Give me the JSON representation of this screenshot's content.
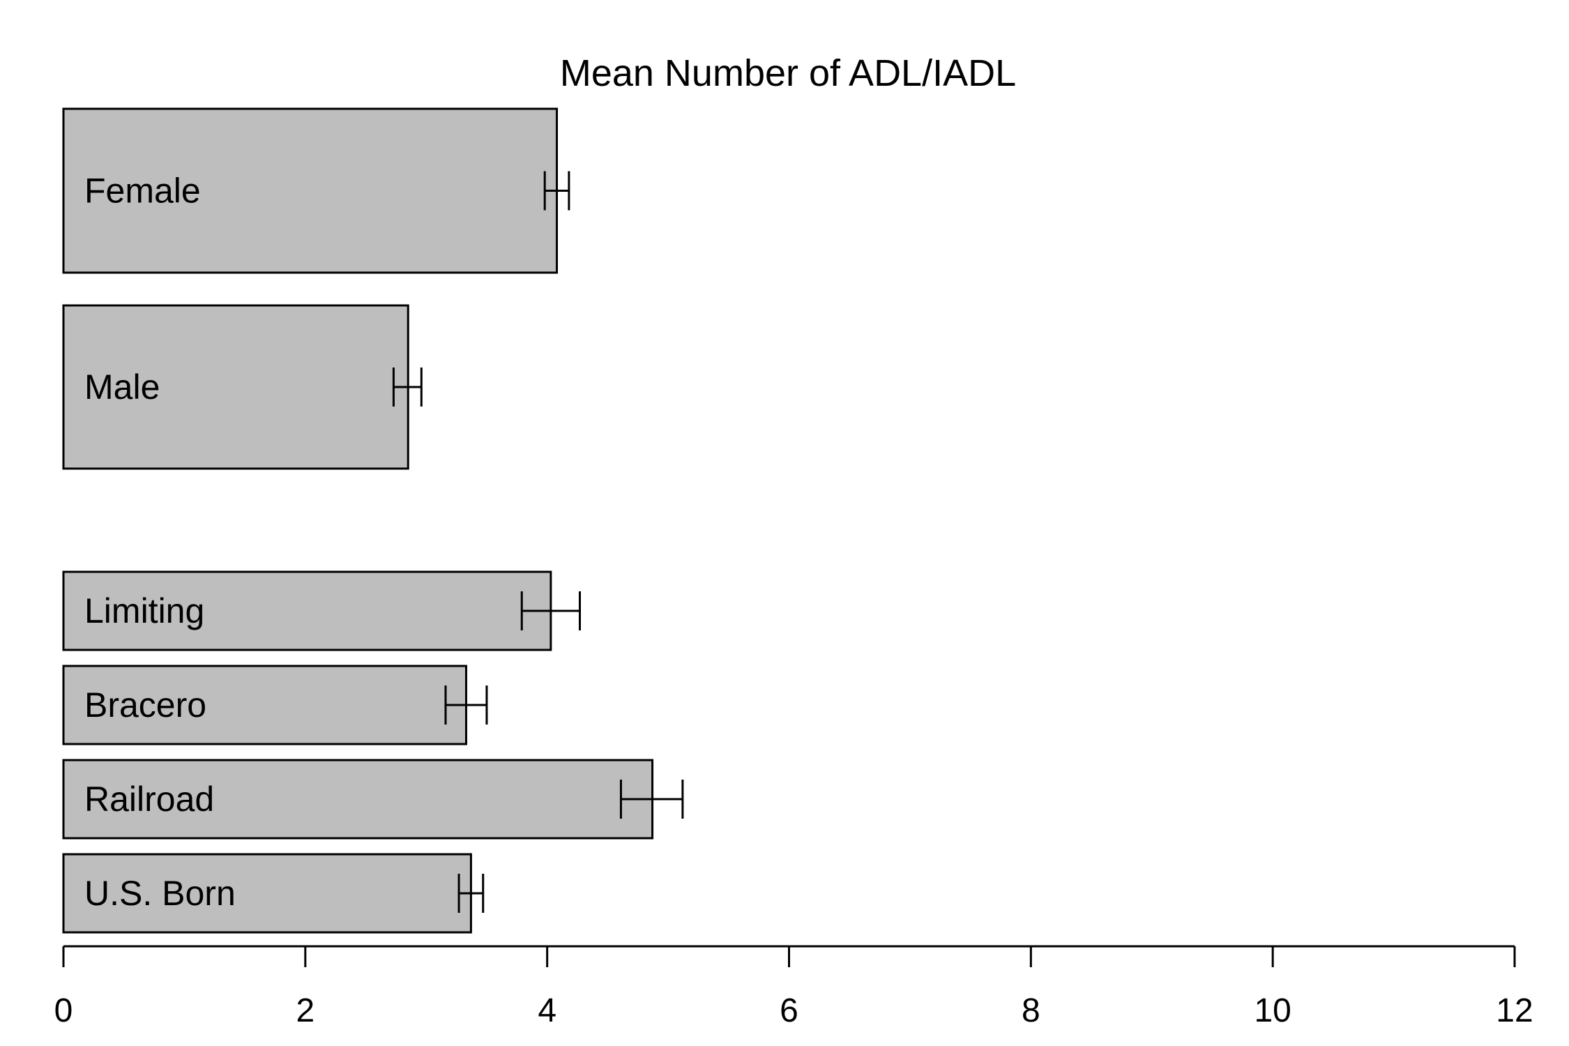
{
  "chart_data": {
    "type": "bar",
    "orientation": "horizontal",
    "title": "Mean Number of ADL/IADL",
    "xlabel": "",
    "ylabel": "",
    "xlim": [
      0,
      12
    ],
    "x_ticks": [
      0,
      2,
      4,
      6,
      8,
      10,
      12
    ],
    "bar_color": "#bebebe",
    "categories": [
      "Female",
      "Male",
      "Limiting",
      "Bracero",
      "Railroad",
      "U.S. Born"
    ],
    "values": [
      4.08,
      2.85,
      4.03,
      3.33,
      4.87,
      3.37
    ],
    "error_low": [
      3.98,
      2.73,
      3.79,
      3.16,
      4.61,
      3.27
    ],
    "error_high": [
      4.18,
      2.96,
      4.27,
      3.5,
      5.12,
      3.47
    ],
    "grid": false,
    "legend": "none"
  }
}
